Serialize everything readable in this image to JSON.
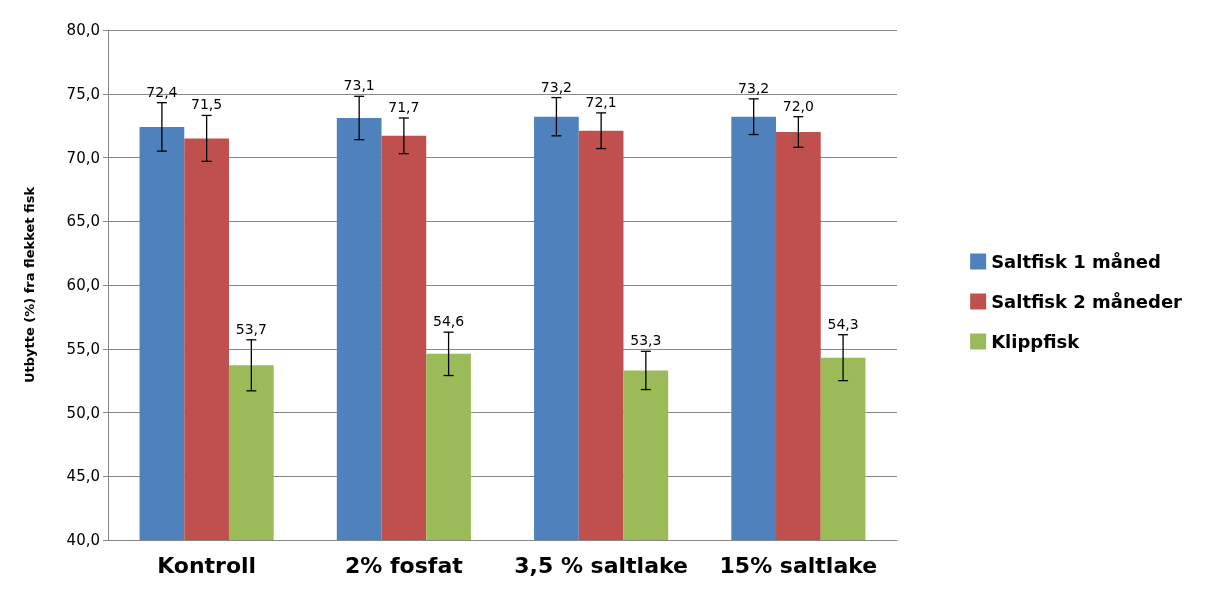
{
  "chart_data": {
    "type": "bar",
    "ylabel": "Utbytte (%) fra flekket fisk",
    "categories": [
      "Kontroll",
      "2% fosfat",
      "3,5 % saltlake",
      "15% saltlake"
    ],
    "series": [
      {
        "name": "Saltfisk 1 måned",
        "color": "#4f81bd",
        "values": [
          72.4,
          73.1,
          73.2,
          73.2
        ],
        "errors": [
          1.9,
          1.7,
          1.5,
          1.4
        ],
        "value_labels": [
          "72,4",
          "73,1",
          "73,2",
          "73,2"
        ]
      },
      {
        "name": "Saltfisk 2 måneder",
        "color": "#c0504d",
        "values": [
          71.5,
          71.7,
          72.1,
          72.0
        ],
        "errors": [
          1.8,
          1.4,
          1.4,
          1.2
        ],
        "value_labels": [
          "71,5",
          "71,7",
          "72,1",
          "72,0"
        ]
      },
      {
        "name": "Klippfisk",
        "color": "#9bbb59",
        "values": [
          53.7,
          54.6,
          53.3,
          54.3
        ],
        "errors": [
          2.0,
          1.7,
          1.5,
          1.8
        ],
        "value_labels": [
          "53,7",
          "54,6",
          "53,3",
          "54,3"
        ]
      }
    ],
    "ylim": [
      40,
      80
    ],
    "yticks": [
      {
        "value": 40,
        "label": "40,0"
      },
      {
        "value": 45,
        "label": "45,0"
      },
      {
        "value": 50,
        "label": "50,0"
      },
      {
        "value": 55,
        "label": "55,0"
      },
      {
        "value": 60,
        "label": "60,0"
      },
      {
        "value": 65,
        "label": "65,0"
      },
      {
        "value": 70,
        "label": "70,0"
      },
      {
        "value": 75,
        "label": "75,0"
      },
      {
        "value": 80,
        "label": "80,0"
      }
    ],
    "grid": "y",
    "legend": "right"
  }
}
